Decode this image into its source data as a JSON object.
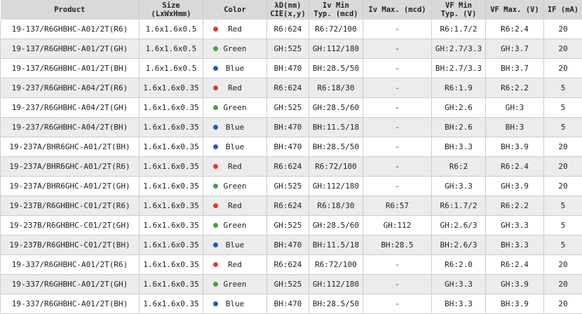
{
  "headers": [
    [
      "Product",
      ""
    ],
    [
      "Size",
      "(LxWxHmm)"
    ],
    [
      "Color",
      ""
    ],
    [
      "λD(nm)",
      "CIE(x,y)"
    ],
    [
      "Iv Min",
      "Typ. (mcd)"
    ],
    [
      "Iv Max. (mcd)",
      ""
    ],
    [
      "VF Min",
      "Typ. (V)"
    ],
    [
      "VF Max. (V)",
      ""
    ],
    [
      "IF (mA)",
      ""
    ]
  ],
  "colors": {
    "Red": "#e53935",
    "Green": "#43a047",
    "Blue": "#1e5bb8"
  },
  "rows": [
    [
      "19-137/R6GHBHC-A01/2T(R6)",
      "1.6x1.6x0.5",
      "Red",
      "R6:624",
      "R6:72/100",
      "-",
      "R6:1.7/2",
      "R6:2.4",
      "20"
    ],
    [
      "19-137/R6GHBHC-A01/2T(GH)",
      "1.6x1.6x0.5",
      "Green",
      "GH:525",
      "GH:112/180",
      "-",
      "GH:2.7/3.3",
      "GH:3.7",
      "20"
    ],
    [
      "19-137/R6GHBHC-A01/2T(BH)",
      "1.6x1.6x0.5",
      "Blue",
      "BH:470",
      "BH:28.5/50",
      "-",
      "BH:2.7/3.3",
      "BH:3.7",
      "20"
    ],
    [
      "19-237/R6GHBHC-A04/2T(R6)",
      "1.6x1.6x0.35",
      "Red",
      "R6:624",
      "R6:18/30",
      "-",
      "R6:1.9",
      "R6:2.2",
      "5"
    ],
    [
      "19-237/R6GHBHC-A04/2T(GH)",
      "1.6x1.6x0.35",
      "Green",
      "GH:525",
      "GH:28.5/60",
      "-",
      "GH:2.6",
      "GH:3",
      "5"
    ],
    [
      "19-237/R6GHBHC-A04/2T(BH)",
      "1.6x1.6x0.35",
      "Blue",
      "BH:470",
      "BH:11.5/18",
      "-",
      "BH:2.6",
      "BH:3",
      "5"
    ],
    [
      "19-237A/BHR6GHC-A01/2T(BH)",
      "1.6x1.6x0.35",
      "Blue",
      "BH:470",
      "BH:28.5/50",
      "-",
      "BH:3.3",
      "BH:3.9",
      "20"
    ],
    [
      "19-237A/BHR6GHC-A01/2T(R6)",
      "1.6x1.6x0.35",
      "Red",
      "R6:624",
      "R6:72/100",
      "-",
      "R6:2",
      "R6:2.4",
      "20"
    ],
    [
      "19-237A/BHR6GHC-A01/2T(GH)",
      "1.6x1.6x0.35",
      "Green",
      "GH:525",
      "GH:112/180",
      "-",
      "GH:3.3",
      "GH:3.9",
      "20"
    ],
    [
      "19-237B/R6GHBHC-C01/2T(R6)",
      "1.6x1.6x0.35",
      "Red",
      "R6:624",
      "R6:18/30",
      "R6:57",
      "R6:1.7/2",
      "R6:2.2",
      "5"
    ],
    [
      "19-237B/R6GHBHC-C01/2T(GH)",
      "1.6x1.6x0.35",
      "Green",
      "GH:525",
      "GH:28.5/60",
      "GH:112",
      "GH:2.6/3",
      "GH:3.3",
      "5"
    ],
    [
      "19-237B/R6GHBHC-C01/2T(BH)",
      "1.6x1.6x0.35",
      "Blue",
      "BH:470",
      "BH:11.5/18",
      "BH:28.5",
      "BH:2.6/3",
      "BH:3.3",
      "5"
    ],
    [
      "19-337/R6GHBHC-A01/2T(R6)",
      "1.6x1.6x0.35",
      "Red",
      "R6:624",
      "R6:72/100",
      "-",
      "R6:2.0",
      "R6:2.4",
      "20"
    ],
    [
      "19-337/R6GHBHC-A01/2T(GH)",
      "1.6x1.6x0.35",
      "Green",
      "GH:525",
      "GH:112/180",
      "-",
      "GH:3.3",
      "GH:3.9",
      "20"
    ],
    [
      "19-337/R6GHBHC-A01/2T(BH)",
      "1.6x1.6x0.35",
      "Blue",
      "BH:470",
      "BH:28.5/50",
      "-",
      "BH:3.3",
      "BH:3.9",
      "20"
    ]
  ]
}
